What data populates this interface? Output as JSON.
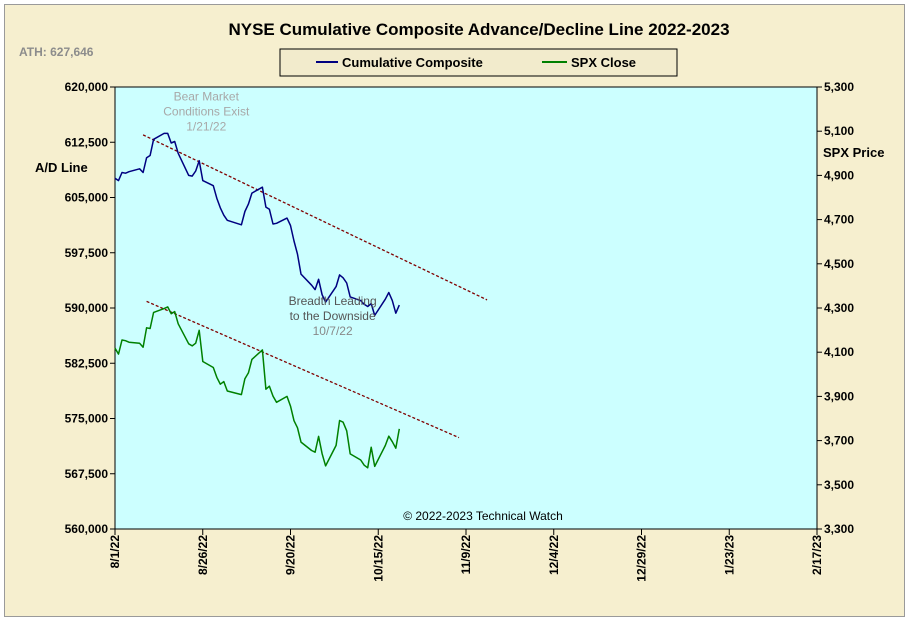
{
  "chart_data": {
    "type": "line",
    "title": "NYSE Cumulative  Composite Advance/Decline  Line  2022-2023",
    "ath_label": "ATH:  627,646",
    "left_axis": {
      "label": "A/D Line",
      "ylim": [
        560000,
        620000
      ],
      "ticks": [
        "620,000",
        "612,500",
        "605,000",
        "597,500",
        "590,000",
        "582,500",
        "575,000",
        "567,500",
        "560,000"
      ],
      "tick_values": [
        620000,
        612500,
        605000,
        597500,
        590000,
        582500,
        575000,
        567500,
        560000
      ]
    },
    "right_axis": {
      "label": "SPX Price",
      "ylim": [
        3300,
        5300
      ],
      "ticks": [
        "5,300",
        "5,100",
        "4,900",
        "4,700",
        "4,500",
        "4,300",
        "4,100",
        "3,900",
        "3,700",
        "3,500",
        "3,300"
      ],
      "tick_values": [
        5300,
        5100,
        4900,
        4700,
        4500,
        4300,
        4100,
        3900,
        3700,
        3500,
        3300
      ]
    },
    "x_axis": {
      "start": "2022-08-01",
      "end": "2023-02-17",
      "tick_labels": [
        "8/1/22",
        "8/26/22",
        "9/20/22",
        "10/15/22",
        "11/9/22",
        "12/4/22",
        "12/29/22",
        "1/23/23",
        "2/17/23"
      ],
      "tick_dates": [
        "2022-08-01",
        "2022-08-26",
        "2022-09-20",
        "2022-10-15",
        "2022-11-09",
        "2022-12-04",
        "2022-12-29",
        "2023-01-23",
        "2023-02-17"
      ]
    },
    "grid": false,
    "plot_background": "#ccffff",
    "legend": {
      "placement": "top-center",
      "entries": [
        {
          "label": "Cumulative Composite",
          "color": "#000080"
        },
        {
          "label": "SPX Close",
          "color": "#008000"
        }
      ]
    },
    "series": [
      {
        "name": "Cumulative Composite",
        "axis": "left",
        "color": "#000080",
        "points": [
          [
            "2022-08-01",
            607600
          ],
          [
            "2022-08-02",
            607300
          ],
          [
            "2022-08-03",
            608400
          ],
          [
            "2022-08-04",
            608300
          ],
          [
            "2022-08-05",
            608500
          ],
          [
            "2022-08-08",
            608900
          ],
          [
            "2022-08-09",
            608400
          ],
          [
            "2022-08-10",
            610400
          ],
          [
            "2022-08-11",
            610700
          ],
          [
            "2022-08-12",
            612900
          ],
          [
            "2022-08-15",
            613700
          ],
          [
            "2022-08-16",
            613700
          ],
          [
            "2022-08-17",
            612400
          ],
          [
            "2022-08-18",
            612600
          ],
          [
            "2022-08-19",
            611000
          ],
          [
            "2022-08-22",
            608000
          ],
          [
            "2022-08-23",
            607900
          ],
          [
            "2022-08-24",
            608600
          ],
          [
            "2022-08-25",
            610000
          ],
          [
            "2022-08-26",
            607300
          ],
          [
            "2022-08-29",
            606600
          ],
          [
            "2022-08-30",
            604900
          ],
          [
            "2022-08-31",
            603600
          ],
          [
            "2022-09-01",
            602600
          ],
          [
            "2022-09-02",
            601900
          ],
          [
            "2022-09-06",
            601300
          ],
          [
            "2022-09-07",
            603100
          ],
          [
            "2022-09-08",
            604100
          ],
          [
            "2022-09-09",
            605600
          ],
          [
            "2022-09-12",
            606400
          ],
          [
            "2022-09-13",
            603700
          ],
          [
            "2022-09-14",
            603400
          ],
          [
            "2022-09-15",
            601400
          ],
          [
            "2022-09-16",
            601500
          ],
          [
            "2022-09-19",
            602200
          ],
          [
            "2022-09-20",
            601200
          ],
          [
            "2022-09-21",
            599100
          ],
          [
            "2022-09-22",
            597300
          ],
          [
            "2022-09-23",
            594600
          ],
          [
            "2022-09-26",
            593100
          ],
          [
            "2022-09-27",
            592500
          ],
          [
            "2022-09-28",
            593900
          ],
          [
            "2022-09-29",
            591800
          ],
          [
            "2022-09-30",
            590800
          ],
          [
            "2022-10-03",
            592900
          ],
          [
            "2022-10-04",
            594500
          ],
          [
            "2022-10-05",
            594100
          ],
          [
            "2022-10-06",
            593400
          ],
          [
            "2022-10-07",
            591500
          ],
          [
            "2022-10-10",
            591000
          ],
          [
            "2022-10-11",
            590500
          ],
          [
            "2022-10-12",
            590200
          ],
          [
            "2022-10-13",
            590600
          ],
          [
            "2022-10-14",
            589000
          ],
          [
            "2022-10-17",
            591200
          ],
          [
            "2022-10-18",
            592100
          ],
          [
            "2022-10-19",
            591000
          ],
          [
            "2022-10-20",
            589300
          ],
          [
            "2022-10-21",
            590400
          ]
        ]
      },
      {
        "name": "SPX Close",
        "axis": "right",
        "color": "#008000",
        "points": [
          [
            "2022-08-01",
            4118.6
          ],
          [
            "2022-08-02",
            4091.2
          ],
          [
            "2022-08-03",
            4155.2
          ],
          [
            "2022-08-04",
            4151.9
          ],
          [
            "2022-08-05",
            4145.2
          ],
          [
            "2022-08-08",
            4140.1
          ],
          [
            "2022-08-09",
            4122.5
          ],
          [
            "2022-08-10",
            4210.2
          ],
          [
            "2022-08-11",
            4207.3
          ],
          [
            "2022-08-12",
            4280.2
          ],
          [
            "2022-08-15",
            4297.1
          ],
          [
            "2022-08-16",
            4305.2
          ],
          [
            "2022-08-17",
            4274.0
          ],
          [
            "2022-08-18",
            4283.7
          ],
          [
            "2022-08-19",
            4228.5
          ],
          [
            "2022-08-22",
            4137.9
          ],
          [
            "2022-08-23",
            4128.7
          ],
          [
            "2022-08-24",
            4140.8
          ],
          [
            "2022-08-25",
            4199.1
          ],
          [
            "2022-08-26",
            4057.7
          ],
          [
            "2022-08-29",
            4030.6
          ],
          [
            "2022-08-30",
            3986.2
          ],
          [
            "2022-08-31",
            3955.0
          ],
          [
            "2022-09-01",
            3966.9
          ],
          [
            "2022-09-02",
            3924.3
          ],
          [
            "2022-09-06",
            3908.2
          ],
          [
            "2022-09-07",
            3979.9
          ],
          [
            "2022-09-08",
            4006.2
          ],
          [
            "2022-09-09",
            4067.4
          ],
          [
            "2022-09-12",
            4110.4
          ],
          [
            "2022-09-13",
            3932.7
          ],
          [
            "2022-09-14",
            3946.0
          ],
          [
            "2022-09-15",
            3901.4
          ],
          [
            "2022-09-16",
            3873.3
          ],
          [
            "2022-09-19",
            3899.9
          ],
          [
            "2022-09-20",
            3856.0
          ],
          [
            "2022-09-21",
            3790.0
          ],
          [
            "2022-09-22",
            3757.9
          ],
          [
            "2022-09-23",
            3693.2
          ],
          [
            "2022-09-26",
            3655.0
          ],
          [
            "2022-09-27",
            3647.3
          ],
          [
            "2022-09-28",
            3719.0
          ],
          [
            "2022-09-29",
            3640.5
          ],
          [
            "2022-09-30",
            3585.6
          ],
          [
            "2022-10-03",
            3678.4
          ],
          [
            "2022-10-04",
            3790.9
          ],
          [
            "2022-10-05",
            3783.3
          ],
          [
            "2022-10-06",
            3744.5
          ],
          [
            "2022-10-07",
            3639.7
          ],
          [
            "2022-10-10",
            3612.4
          ],
          [
            "2022-10-11",
            3588.8
          ],
          [
            "2022-10-12",
            3577.0
          ],
          [
            "2022-10-13",
            3669.9
          ],
          [
            "2022-10-14",
            3583.1
          ],
          [
            "2022-10-17",
            3677.9
          ],
          [
            "2022-10-18",
            3719.9
          ],
          [
            "2022-10-19",
            3695.2
          ],
          [
            "2022-10-20",
            3665.8
          ],
          [
            "2022-10-21",
            3752.8
          ]
        ]
      }
    ],
    "trendlines": [
      {
        "axis": "left",
        "color": "#800000",
        "from": [
          "2022-08-09",
          613500
        ],
        "to": [
          "2022-11-15",
          591100
        ]
      },
      {
        "axis": "left",
        "color": "#800000",
        "from": [
          "2022-08-10",
          590900
        ],
        "to": [
          "2022-11-07",
          572400
        ]
      }
    ],
    "annotations": [
      {
        "id": "bear",
        "lines": [
          "Bear Market",
          "Conditions  Exist",
          "1/21/22"
        ],
        "color": "#a8a8a8",
        "anchor": [
          "2022-08-27",
          618200
        ]
      },
      {
        "id": "breadth",
        "lines": [
          "Breadth Leading",
          "to the Downside",
          "10/7/22"
        ],
        "color": "#555555",
        "anchor": [
          "2022-10-02",
          590400
        ]
      }
    ],
    "copyright": "© 2022-2023  Technical Watch"
  }
}
